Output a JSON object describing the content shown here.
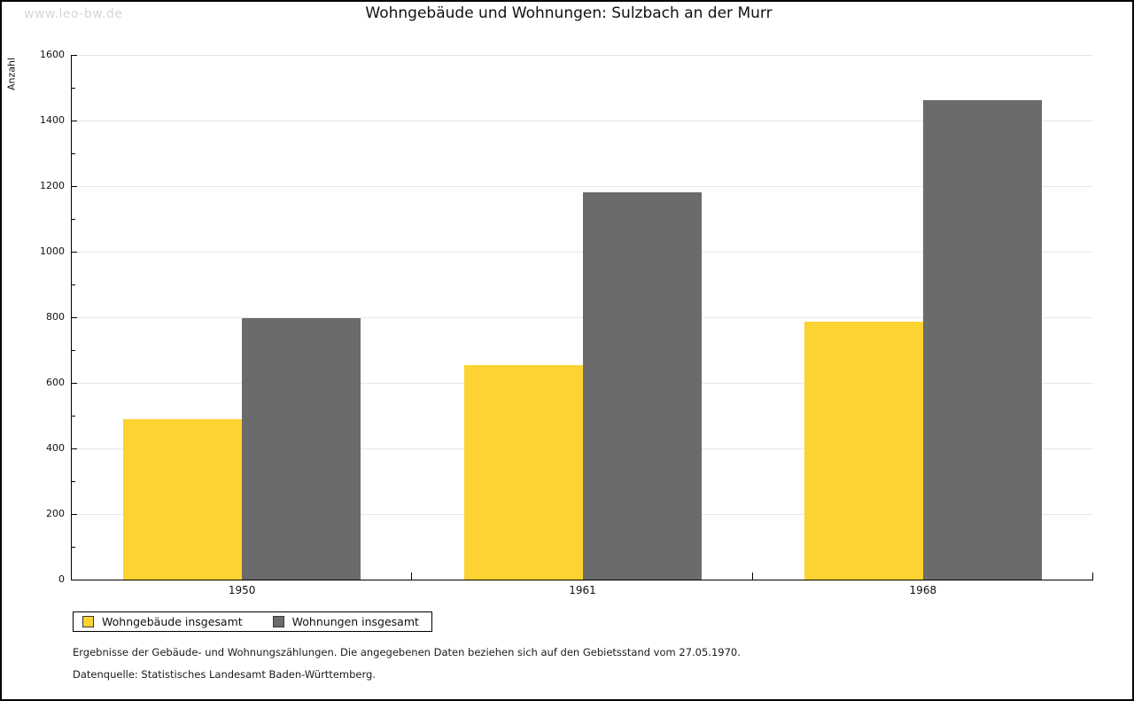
{
  "page": {
    "watermark": "www.leo-bw.de",
    "title": "Wohngebäude und Wohnungen: Sulzbach an der Murr"
  },
  "chart_data": {
    "type": "bar",
    "title": "Wohngebäude und Wohnungen: Sulzbach an der Murr",
    "ylabel": "Anzahl",
    "xlabel": "",
    "ylim": [
      0,
      1600
    ],
    "ytick_major_step": 200,
    "ytick_minor_step": 100,
    "grid": true,
    "categories": [
      "1950",
      "1961",
      "1968"
    ],
    "series": [
      {
        "name": "Wohngebäude insgesamt",
        "color": "#FCD330",
        "values": [
          490,
          655,
          787
        ]
      },
      {
        "name": "Wohnungen insgesamt",
        "color": "#6B6B6B",
        "values": [
          798,
          1181,
          1463
        ]
      }
    ],
    "legend_position": "bottom-left"
  },
  "footer": {
    "line1": "Ergebnisse der Gebäude- und Wohnungszählungen. Die angegebenen Daten beziehen sich auf den Gebietsstand vom 27.05.1970.",
    "line2": "Datenquelle: Statistisches Landesamt Baden-Württemberg."
  },
  "colors": {
    "background": "#FFFFFF",
    "page_border": "#000000",
    "gridline": "#E7E7E7",
    "axis": "#000000",
    "watermark": "#D6D6D6",
    "text": "#111111"
  }
}
